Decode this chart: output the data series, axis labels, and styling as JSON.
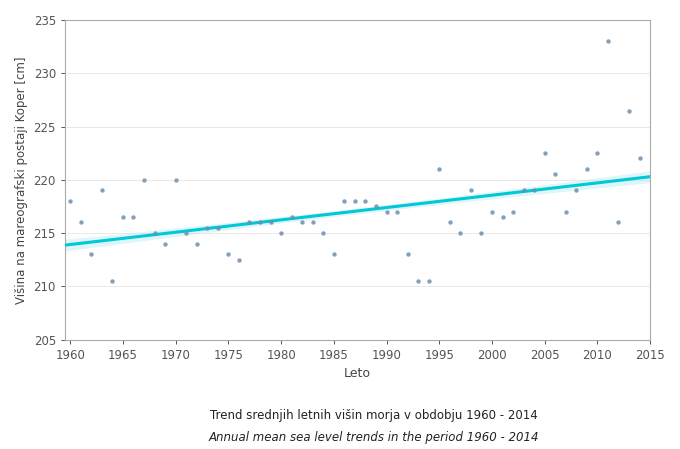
{
  "years": [
    1960,
    1961,
    1962,
    1963,
    1964,
    1965,
    1966,
    1967,
    1968,
    1969,
    1970,
    1971,
    1972,
    1973,
    1974,
    1975,
    1976,
    1977,
    1978,
    1979,
    1980,
    1981,
    1982,
    1983,
    1984,
    1985,
    1986,
    1987,
    1988,
    1989,
    1990,
    1991,
    1992,
    1993,
    1994,
    1995,
    1996,
    1997,
    1998,
    1999,
    2000,
    2001,
    2002,
    2003,
    2004,
    2005,
    2006,
    2007,
    2008,
    2009,
    2010,
    2011,
    2012,
    2013,
    2014
  ],
  "values": [
    218,
    216,
    213,
    219,
    210.5,
    216.5,
    216.5,
    220,
    215,
    214,
    220,
    215,
    214,
    215.5,
    215.5,
    213,
    212.5,
    216,
    216,
    216,
    215,
    216.5,
    216,
    216,
    215,
    213,
    218,
    218,
    218,
    217.5,
    217,
    217,
    213,
    210.5,
    210.5,
    221,
    216,
    215,
    219,
    215,
    217,
    216.5,
    217,
    219,
    219,
    222.5,
    220.5,
    217,
    219,
    221,
    222.5,
    233,
    216,
    226.5,
    222
  ],
  "scatter_color": "#6d8eae",
  "trend_color": "#00c8d4",
  "trend_band_color": "#aeeaf0",
  "title_line1": "Trend srednjih letnih višin morja v obdobju 1960 - 2014",
  "title_line2": "Annual mean sea level trends in the period 1960 - 2014",
  "xlabel": "Leto",
  "ylabel": "Višina na mareografski postaji Koper [cm]",
  "xlim": [
    1959.5,
    2014.5
  ],
  "ylim": [
    205,
    235
  ],
  "yticks": [
    205,
    210,
    215,
    220,
    225,
    230,
    235
  ],
  "xticks": [
    1960,
    1965,
    1970,
    1975,
    1980,
    1985,
    1990,
    1995,
    2000,
    2005,
    2010,
    2015
  ],
  "background_color": "#ffffff",
  "scatter_size": 10,
  "scatter_alpha": 0.85,
  "trend_linewidth": 2.2,
  "trend_band_alpha": 0.4,
  "band_factor": 0.6
}
